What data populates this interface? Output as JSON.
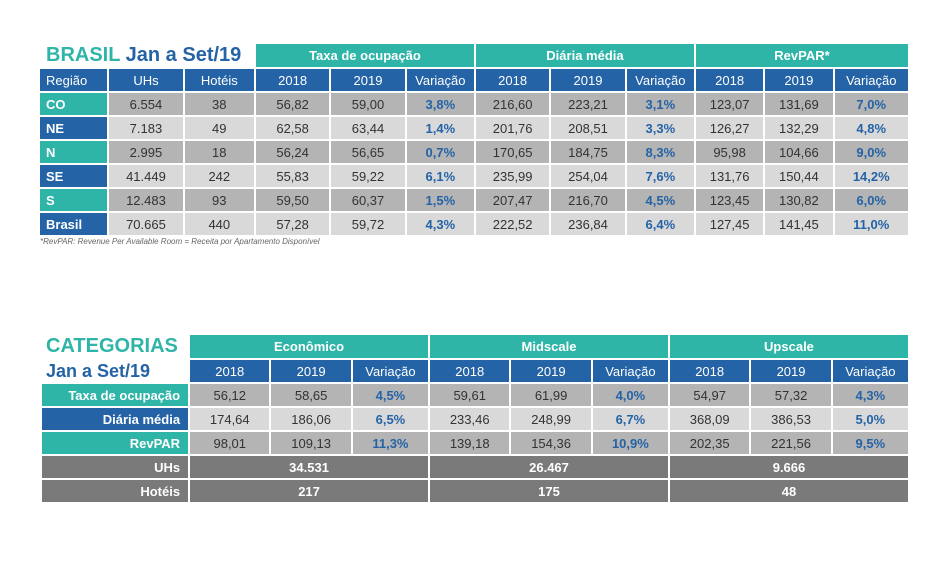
{
  "brasil": {
    "title_brasil": "BRASIL",
    "title_period": "Jan a Set/19",
    "groups": [
      "Taxa de ocupação",
      "Diária média",
      "RevPAR*"
    ],
    "headers": [
      "Região",
      "UHs",
      "Hotéis",
      "2018",
      "2019",
      "Variação",
      "2018",
      "2019",
      "Variação",
      "2018",
      "2019",
      "Variação"
    ],
    "rows": [
      {
        "region": "CO",
        "uhs": "6.554",
        "hoteis": "38",
        "to18": "56,82",
        "to19": "59,00",
        "tov": "3,8%",
        "dm18": "216,60",
        "dm19": "223,21",
        "dmv": "3,1%",
        "rp18": "123,07",
        "rp19": "131,69",
        "rpv": "7,0%"
      },
      {
        "region": "NE",
        "uhs": "7.183",
        "hoteis": "49",
        "to18": "62,58",
        "to19": "63,44",
        "tov": "1,4%",
        "dm18": "201,76",
        "dm19": "208,51",
        "dmv": "3,3%",
        "rp18": "126,27",
        "rp19": "132,29",
        "rpv": "4,8%"
      },
      {
        "region": "N",
        "uhs": "2.995",
        "hoteis": "18",
        "to18": "56,24",
        "to19": "56,65",
        "tov": "0,7%",
        "dm18": "170,65",
        "dm19": "184,75",
        "dmv": "8,3%",
        "rp18": "95,98",
        "rp19": "104,66",
        "rpv": "9,0%"
      },
      {
        "region": "SE",
        "uhs": "41.449",
        "hoteis": "242",
        "to18": "55,83",
        "to19": "59,22",
        "tov": "6,1%",
        "dm18": "235,99",
        "dm19": "254,04",
        "dmv": "7,6%",
        "rp18": "131,76",
        "rp19": "150,44",
        "rpv": "14,2%"
      },
      {
        "region": "S",
        "uhs": "12.483",
        "hoteis": "93",
        "to18": "59,50",
        "to19": "60,37",
        "tov": "1,5%",
        "dm18": "207,47",
        "dm19": "216,70",
        "dmv": "4,5%",
        "rp18": "123,45",
        "rp19": "130,82",
        "rpv": "6,0%"
      },
      {
        "region": "Brasil",
        "uhs": "70.665",
        "hoteis": "440",
        "to18": "57,28",
        "to19": "59,72",
        "tov": "4,3%",
        "dm18": "222,52",
        "dm19": "236,84",
        "dmv": "6,4%",
        "rp18": "127,45",
        "rp19": "141,45",
        "rpv": "11,0%"
      }
    ],
    "footnote": "*RevPAR: Revenue Per Available Room = Receita por Apartamento Disponível"
  },
  "categorias": {
    "title": "CATEGORIAS",
    "period": "Jan a Set/19",
    "groups": [
      "Econômico",
      "Midscale",
      "Upscale"
    ],
    "headers": [
      "2018",
      "2019",
      "Variação",
      "2018",
      "2019",
      "Variação",
      "2018",
      "2019",
      "Variação"
    ],
    "rows": [
      {
        "label": "Taxa de ocupação",
        "values": [
          "56,12",
          "58,65",
          "4,5%",
          "59,61",
          "61,99",
          "4,0%",
          "54,97",
          "57,32",
          "4,3%"
        ]
      },
      {
        "label": "Diária média",
        "values": [
          "174,64",
          "186,06",
          "6,5%",
          "233,46",
          "248,99",
          "6,7%",
          "368,09",
          "386,53",
          "5,0%"
        ]
      },
      {
        "label": "RevPAR",
        "values": [
          "98,01",
          "109,13",
          "11,3%",
          "139,18",
          "154,36",
          "10,9%",
          "202,35",
          "221,56",
          "9,5%"
        ]
      }
    ],
    "uhs": {
      "label": "UHs",
      "values": [
        "34.531",
        "26.467",
        "9.666"
      ]
    },
    "hoteis": {
      "label": "Hotéis",
      "values": [
        "217",
        "175",
        "48"
      ]
    }
  },
  "colors": {
    "teal": "#2fb5a8",
    "blue": "#2463a6",
    "dark_gray": "#b4b4b4",
    "light_gray": "#d9d9d9",
    "mid_gray": "#7a7a7a"
  }
}
